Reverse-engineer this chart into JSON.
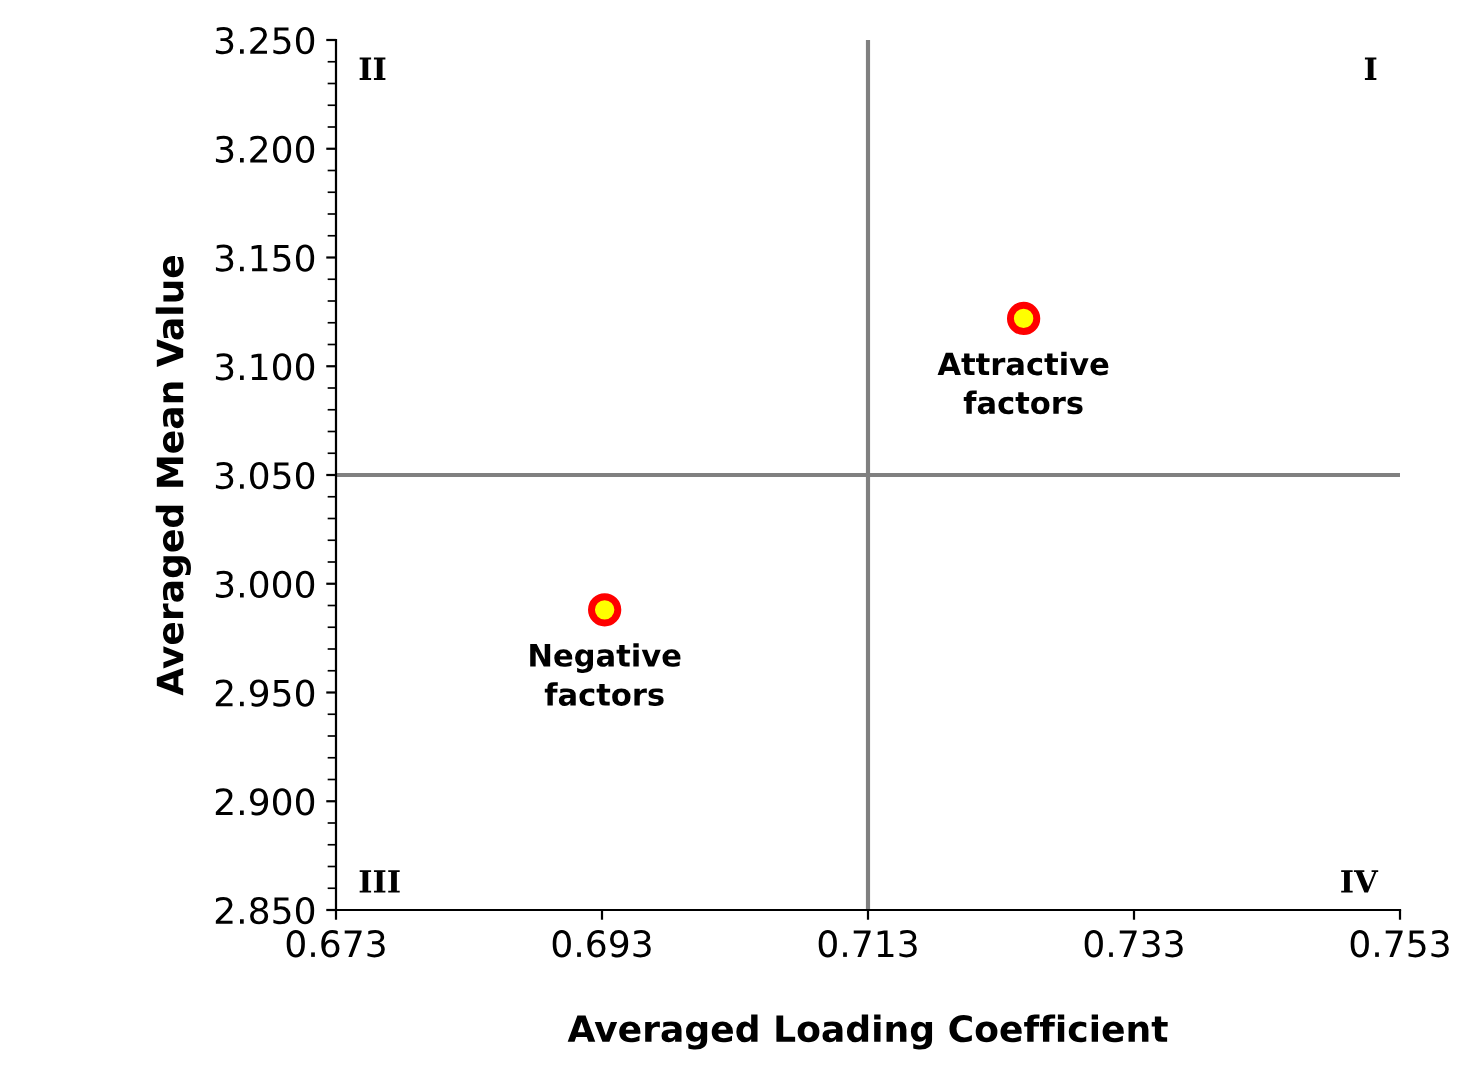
{
  "chart_data": {
    "type": "scatter",
    "xlabel": "Averaged Loading Coefficient",
    "ylabel": "Averaged Mean Value",
    "x": [
      0.6932,
      0.7247
    ],
    "series": [
      {
        "color": "#ffff00",
        "values": [
          2.988,
          3.122
        ]
      }
    ],
    "marker": "circle",
    "grid": false,
    "legend": false,
    "xlim": [
      0.673,
      0.753
    ],
    "xticks": [
      0.673,
      0.693,
      0.713,
      0.733,
      0.753
    ],
    "ylim": [
      2.85,
      3.25
    ],
    "yticks": [
      {
        "value": 2.85,
        "label": "2.850"
      },
      {
        "value": 2.9,
        "label": "2.900"
      },
      {
        "value": 2.95,
        "label": "2.950"
      },
      {
        "value": 3.0,
        "label": "3.000"
      },
      {
        "value": 3.05,
        "label": "3.050"
      },
      {
        "value": 3.1,
        "label": "3.100"
      },
      {
        "value": 3.15,
        "label": "3.150"
      },
      {
        "value": 3.2,
        "label": "3.200"
      },
      {
        "value": 3.25,
        "label": "3.250"
      }
    ],
    "ref_lines": [
      {
        "axis": "x",
        "value": 0.713,
        "color": "#808080"
      },
      {
        "axis": "y",
        "value": 3.05,
        "color": "#808080"
      }
    ],
    "annotations": [
      {
        "text": "Negative\nfactors",
        "x": 0.6932,
        "y": 2.988
      },
      {
        "text": "Attractive\nfactors",
        "x": 0.7247,
        "y": 3.122
      },
      "I",
      "II",
      "III",
      "IV"
    ]
  }
}
